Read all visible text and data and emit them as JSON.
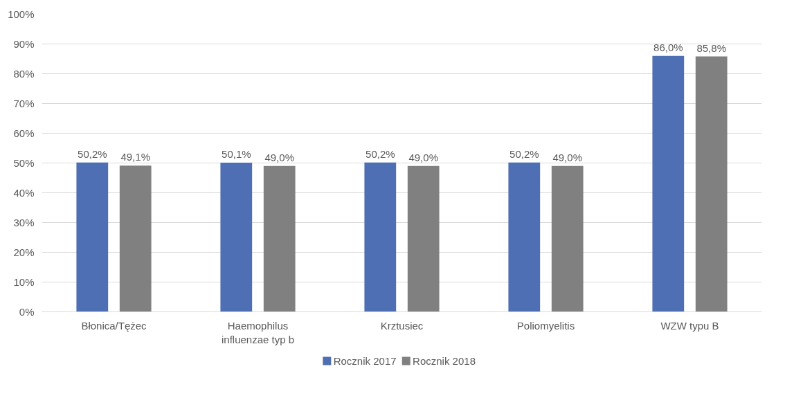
{
  "chart_data": {
    "type": "bar",
    "categories": [
      "Błonica/Tężec",
      "Haemophilus influenzae typ b",
      "Krztusiec",
      "Poliomyelitis",
      "WZW typu B"
    ],
    "series": [
      {
        "name": "Rocznik 2017",
        "color": "#4f6fb5",
        "values": [
          50.2,
          50.1,
          50.2,
          50.2,
          86.0
        ],
        "value_labels": [
          "50,2%",
          "50,1%",
          "50,2%",
          "50,2%",
          "86,0%"
        ]
      },
      {
        "name": "Rocznik 2018",
        "color": "#808080",
        "values": [
          49.1,
          49.0,
          49.0,
          49.0,
          85.8
        ],
        "value_labels": [
          "49,1%",
          "49,0%",
          "49,0%",
          "49,0%",
          "85,8%"
        ]
      }
    ],
    "ylim": [
      0,
      100
    ],
    "yticks": [
      {
        "value": 0,
        "label": "0%"
      },
      {
        "value": 10,
        "label": "10%"
      },
      {
        "value": 20,
        "label": "20%"
      },
      {
        "value": 30,
        "label": "30%"
      },
      {
        "value": 40,
        "label": "40%"
      },
      {
        "value": 50,
        "label": "50%"
      },
      {
        "value": 60,
        "label": "60%"
      },
      {
        "value": 70,
        "label": "70%"
      },
      {
        "value": 80,
        "label": "80%"
      },
      {
        "value": 90,
        "label": "90%"
      },
      {
        "value": 100,
        "label": "100%"
      }
    ],
    "grid": "y",
    "legend": "bottom"
  }
}
